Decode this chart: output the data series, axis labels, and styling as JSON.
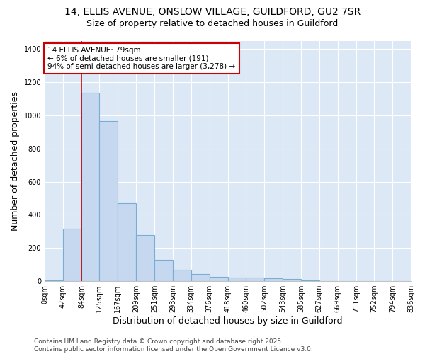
{
  "title_line1": "14, ELLIS AVENUE, ONSLOW VILLAGE, GUILDFORD, GU2 7SR",
  "title_line2": "Size of property relative to detached houses in Guildford",
  "xlabel": "Distribution of detached houses by size in Guildford",
  "ylabel": "Number of detached properties",
  "bar_values": [
    5,
    315,
    1135,
    965,
    470,
    280,
    130,
    68,
    45,
    28,
    20,
    20,
    18,
    12,
    4,
    0,
    0,
    0,
    0,
    0
  ],
  "bin_edges": [
    0,
    42,
    84,
    125,
    167,
    209,
    251,
    293,
    334,
    376,
    418,
    460,
    502,
    543,
    585,
    627,
    669,
    711,
    752,
    794,
    836
  ],
  "bar_color": "#c5d8f0",
  "bar_edge_color": "#7aadd4",
  "vline_x": 84,
  "vline_color": "#cc0000",
  "annotation_text": "14 ELLIS AVENUE: 79sqm\n← 6% of detached houses are smaller (191)\n94% of semi-detached houses are larger (3,278) →",
  "annotation_box_color": "#ffffff",
  "annotation_box_edge": "#cc0000",
  "ylim": [
    0,
    1450
  ],
  "yticks": [
    0,
    200,
    400,
    600,
    800,
    1000,
    1200,
    1400
  ],
  "tick_labels": [
    "0sqm",
    "42sqm",
    "84sqm",
    "125sqm",
    "167sqm",
    "209sqm",
    "251sqm",
    "293sqm",
    "334sqm",
    "376sqm",
    "418sqm",
    "460sqm",
    "502sqm",
    "543sqm",
    "585sqm",
    "627sqm",
    "669sqm",
    "711sqm",
    "752sqm",
    "794sqm",
    "836sqm"
  ],
  "footer_text": "Contains HM Land Registry data © Crown copyright and database right 2025.\nContains public sector information licensed under the Open Government Licence v3.0.",
  "bg_color": "#ffffff",
  "plot_bg_color": "#dce8f5",
  "grid_color": "#ffffff",
  "title_fontsize": 10,
  "subtitle_fontsize": 9,
  "axis_label_fontsize": 9,
  "tick_fontsize": 7,
  "footer_fontsize": 6.5,
  "annotation_fontsize": 7.5
}
